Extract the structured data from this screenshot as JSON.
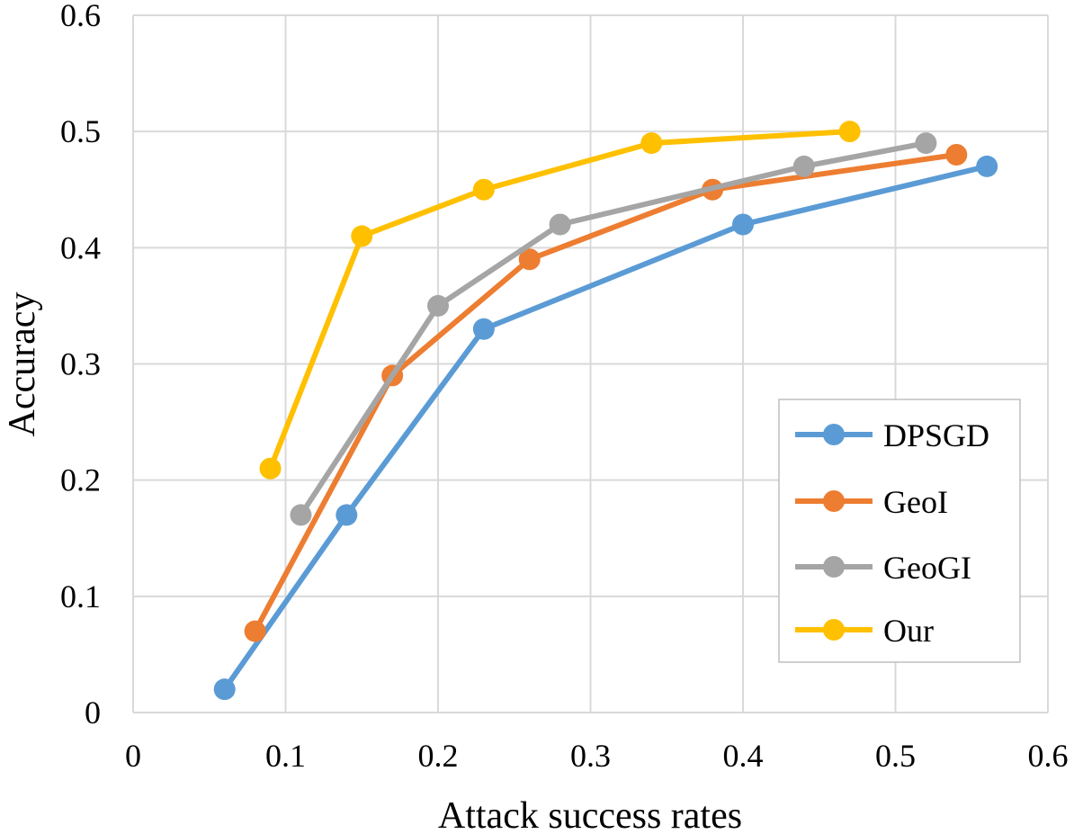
{
  "chart_data": {
    "type": "line",
    "title": "",
    "xlabel": "Attack success rates",
    "ylabel": "Accuracy",
    "xlim": [
      0,
      0.6
    ],
    "ylim": [
      0,
      0.6
    ],
    "xticks": [
      0,
      0.1,
      0.2,
      0.3,
      0.4,
      0.5,
      0.6
    ],
    "yticks": [
      0,
      0.1,
      0.2,
      0.3,
      0.4,
      0.5,
      0.6
    ],
    "xtick_labels": [
      "0",
      "0.1",
      "0.2",
      "0.3",
      "0.4",
      "0.5",
      "0.6"
    ],
    "ytick_labels": [
      "0",
      "0.1",
      "0.2",
      "0.3",
      "0.4",
      "0.5",
      "0.6"
    ],
    "grid": true,
    "legend_position": "bottom-right",
    "series": [
      {
        "name": "DPSGD",
        "color": "#5b9bd5",
        "x": [
          0.06,
          0.14,
          0.23,
          0.4,
          0.56
        ],
        "y": [
          0.02,
          0.17,
          0.33,
          0.42,
          0.47
        ]
      },
      {
        "name": "GeoI",
        "color": "#ed7d31",
        "x": [
          0.08,
          0.17,
          0.26,
          0.38,
          0.54
        ],
        "y": [
          0.07,
          0.29,
          0.39,
          0.45,
          0.48
        ]
      },
      {
        "name": "GeoGI",
        "color": "#a5a5a5",
        "x": [
          0.11,
          0.2,
          0.28,
          0.44,
          0.52
        ],
        "y": [
          0.17,
          0.35,
          0.42,
          0.47,
          0.49
        ]
      },
      {
        "name": "Our",
        "color": "#ffc000",
        "x": [
          0.09,
          0.15,
          0.23,
          0.34,
          0.47
        ],
        "y": [
          0.21,
          0.41,
          0.45,
          0.49,
          0.5
        ]
      }
    ]
  }
}
